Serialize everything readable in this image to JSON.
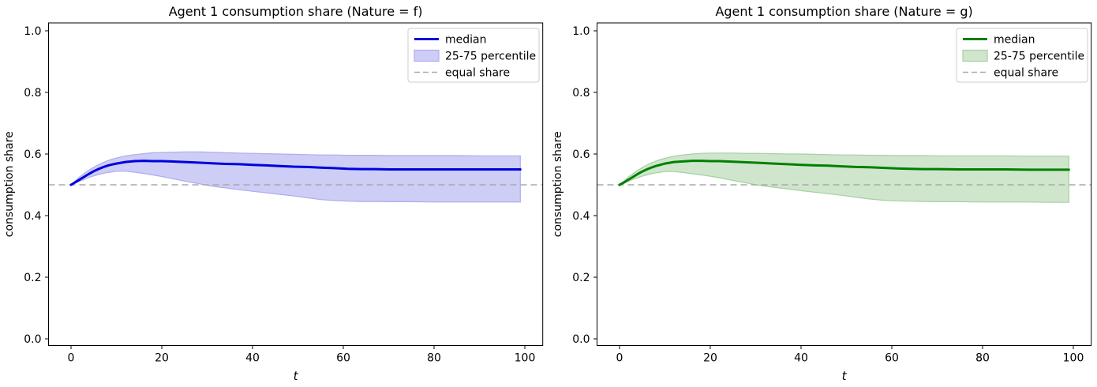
{
  "figure": {
    "background": "#ffffff"
  },
  "chart_data": [
    {
      "type": "line",
      "title": "Agent 1 consumption share (Nature = f)",
      "xlabel": "t",
      "ylabel": "consumption share",
      "xlim": [
        -4.95,
        103.95
      ],
      "ylim": [
        -0.025,
        1.026
      ],
      "xticks": [
        0,
        20,
        40,
        60,
        80,
        100
      ],
      "xticklabels": [
        "0",
        "20",
        "40",
        "60",
        "80",
        "100"
      ],
      "yticks": [
        0,
        0.2,
        0.4,
        0.6,
        0.8,
        1.0
      ],
      "yticklabels": [
        "0.0",
        "0.2",
        "0.4",
        "0.6",
        "0.8",
        "1.0"
      ],
      "grid": false,
      "equal_share": 0.5,
      "legend": {
        "position": "upper right",
        "entries": [
          {
            "label": "median",
            "type": "line"
          },
          {
            "label": "25-75 percentile",
            "type": "patch"
          },
          {
            "label": "equal share",
            "type": "dashed"
          }
        ]
      },
      "colors": {
        "median": "#0000dd",
        "band_fill": "#cdcdf6",
        "band_edge": "#adadef",
        "equal_share_line": "#aaaaaa"
      },
      "t": [
        0,
        1,
        2,
        3,
        4,
        5,
        6,
        7,
        8,
        9,
        10,
        12,
        14,
        16,
        18,
        20,
        22,
        25,
        28,
        31,
        34,
        37,
        40,
        43,
        46,
        49,
        52,
        55,
        58,
        61,
        64,
        67,
        70,
        75,
        80,
        85,
        90,
        95,
        99
      ],
      "series": [
        {
          "name": "median",
          "values": [
            0.5,
            0.509,
            0.518,
            0.527,
            0.536,
            0.544,
            0.551,
            0.557,
            0.562,
            0.566,
            0.569,
            0.574,
            0.577,
            0.578,
            0.577,
            0.577,
            0.576,
            0.574,
            0.572,
            0.57,
            0.568,
            0.567,
            0.565,
            0.563,
            0.561,
            0.559,
            0.558,
            0.556,
            0.554,
            0.552,
            0.551,
            0.551,
            0.55,
            0.55,
            0.55,
            0.55,
            0.55,
            0.55,
            0.55
          ]
        },
        {
          "name": "p25",
          "values": [
            0.5,
            0.506,
            0.512,
            0.518,
            0.524,
            0.529,
            0.533,
            0.537,
            0.54,
            0.542,
            0.544,
            0.544,
            0.541,
            0.537,
            0.532,
            0.527,
            0.521,
            0.512,
            0.504,
            0.496,
            0.49,
            0.484,
            0.479,
            0.474,
            0.469,
            0.464,
            0.458,
            0.452,
            0.449,
            0.447,
            0.446,
            0.446,
            0.445,
            0.445,
            0.444,
            0.444,
            0.444,
            0.444,
            0.444
          ]
        },
        {
          "name": "p75",
          "values": [
            0.5,
            0.514,
            0.527,
            0.538,
            0.548,
            0.557,
            0.565,
            0.572,
            0.578,
            0.583,
            0.587,
            0.594,
            0.598,
            0.601,
            0.604,
            0.605,
            0.606,
            0.607,
            0.607,
            0.606,
            0.604,
            0.603,
            0.602,
            0.601,
            0.6,
            0.599,
            0.598,
            0.597,
            0.597,
            0.596,
            0.596,
            0.596,
            0.595,
            0.595,
            0.595,
            0.595,
            0.594,
            0.594,
            0.594
          ]
        }
      ]
    },
    {
      "type": "line",
      "title": "Agent 1 consumption share (Nature = g)",
      "xlabel": "t",
      "ylabel": "consumption share",
      "xlim": [
        -4.95,
        103.95
      ],
      "ylim": [
        -0.025,
        1.026
      ],
      "xticks": [
        0,
        20,
        40,
        60,
        80,
        100
      ],
      "xticklabels": [
        "0",
        "20",
        "40",
        "60",
        "80",
        "100"
      ],
      "yticks": [
        0,
        0.2,
        0.4,
        0.6,
        0.8,
        1.0
      ],
      "yticklabels": [
        "0.0",
        "0.2",
        "0.4",
        "0.6",
        "0.8",
        "1.0"
      ],
      "grid": false,
      "equal_share": 0.5,
      "legend": {
        "position": "upper right",
        "entries": [
          {
            "label": "median",
            "type": "line"
          },
          {
            "label": "25-75 percentile",
            "type": "patch"
          },
          {
            "label": "equal share",
            "type": "dashed"
          }
        ]
      },
      "colors": {
        "median": "#008000",
        "band_fill": "#cfe6cd",
        "band_edge": "#a5d0a3",
        "equal_share_line": "#aaaaaa"
      },
      "t": [
        0,
        1,
        2,
        3,
        4,
        5,
        6,
        7,
        8,
        9,
        10,
        12,
        14,
        16,
        18,
        20,
        22,
        25,
        28,
        31,
        34,
        37,
        40,
        43,
        46,
        49,
        52,
        55,
        58,
        61,
        64,
        67,
        70,
        75,
        80,
        85,
        90,
        95,
        99
      ],
      "series": [
        {
          "name": "median",
          "values": [
            0.5,
            0.508,
            0.517,
            0.526,
            0.535,
            0.543,
            0.55,
            0.556,
            0.561,
            0.565,
            0.569,
            0.574,
            0.576,
            0.578,
            0.578,
            0.577,
            0.577,
            0.575,
            0.573,
            0.571,
            0.569,
            0.567,
            0.565,
            0.563,
            0.562,
            0.56,
            0.558,
            0.557,
            0.555,
            0.553,
            0.552,
            0.551,
            0.551,
            0.55,
            0.55,
            0.55,
            0.549,
            0.549,
            0.549
          ]
        },
        {
          "name": "p25",
          "values": [
            0.5,
            0.506,
            0.512,
            0.518,
            0.523,
            0.528,
            0.532,
            0.536,
            0.539,
            0.541,
            0.543,
            0.543,
            0.54,
            0.536,
            0.532,
            0.528,
            0.523,
            0.514,
            0.506,
            0.498,
            0.492,
            0.487,
            0.481,
            0.476,
            0.471,
            0.466,
            0.46,
            0.454,
            0.45,
            0.448,
            0.447,
            0.446,
            0.445,
            0.445,
            0.444,
            0.444,
            0.444,
            0.443,
            0.443
          ]
        },
        {
          "name": "p75",
          "values": [
            0.5,
            0.513,
            0.526,
            0.537,
            0.547,
            0.556,
            0.564,
            0.571,
            0.577,
            0.582,
            0.586,
            0.593,
            0.597,
            0.6,
            0.602,
            0.603,
            0.603,
            0.603,
            0.602,
            0.602,
            0.601,
            0.6,
            0.6,
            0.599,
            0.598,
            0.597,
            0.597,
            0.596,
            0.596,
            0.595,
            0.595,
            0.595,
            0.594,
            0.594,
            0.594,
            0.594,
            0.593,
            0.593,
            0.593
          ]
        }
      ]
    }
  ]
}
